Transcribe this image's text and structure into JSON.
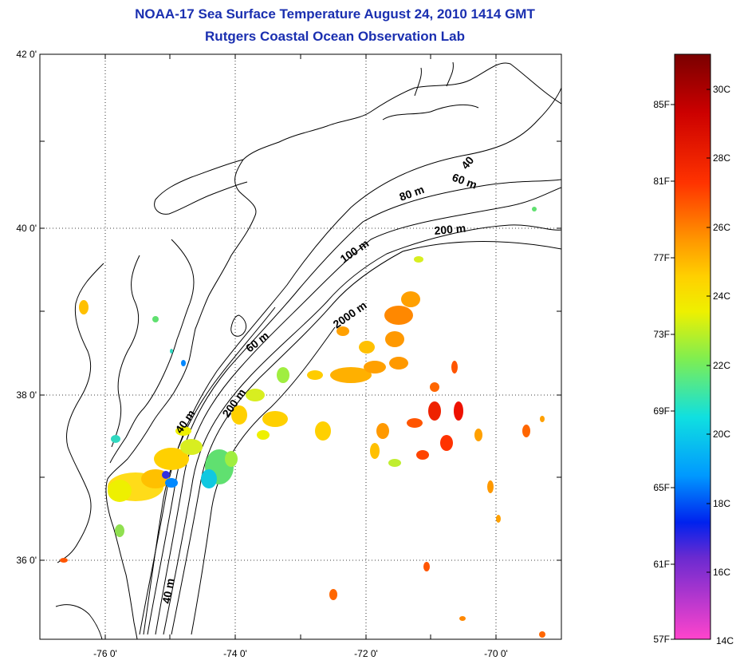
{
  "title": "NOAA-17 Sea Surface Temperature August 24, 2010 1414 GMT",
  "subtitle": "Rutgers Coastal Ocean Observation Lab",
  "lat_labels": [
    "42 0'",
    "40 0'",
    "38 0'",
    "36 0'"
  ],
  "lon_labels": [
    "-76 0'",
    "-74 0'",
    "-72 0'",
    "-70 0'"
  ],
  "contour_labels": {
    "c40a": "40",
    "c60a": "60 m",
    "c80": "80 m",
    "c200a": "200 m",
    "c100": "100 m",
    "c2000": "2000 m",
    "c60b": "60 m",
    "c200b": "200 m",
    "c40b": "40 m",
    "c40c": "40 m"
  },
  "colorbar": {
    "fahrenheit": [
      "85F",
      "81F",
      "77F",
      "73F",
      "69F",
      "65F",
      "61F",
      "57F"
    ],
    "celsius": [
      "30C",
      "28C",
      "26C",
      "24C",
      "22C",
      "20C",
      "18C",
      "16C",
      "14C"
    ]
  },
  "colors": {
    "title": "#1a2fb0",
    "scale_top": "#7a0000",
    "scale_bottom": "#ff44cc"
  }
}
